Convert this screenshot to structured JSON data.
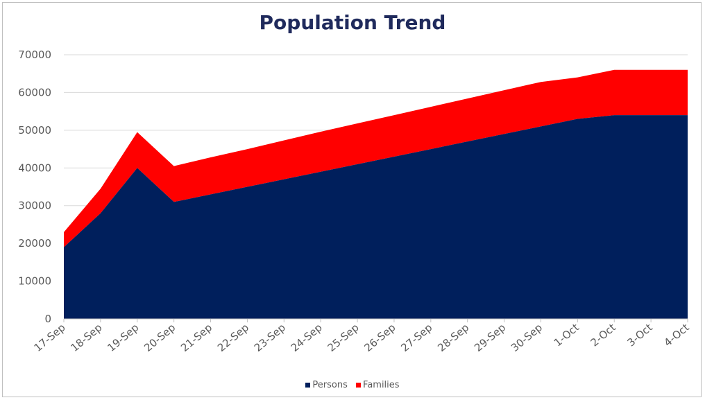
{
  "chart_data": {
    "type": "area",
    "stacked": true,
    "title": "Population Trend",
    "xlabel": "",
    "ylabel": "",
    "x": [
      "17-Sep",
      "18-Sep",
      "19-Sep",
      "20-Sep",
      "21-Sep",
      "22-Sep",
      "23-Sep",
      "24-Sep",
      "25-Sep",
      "26-Sep",
      "27-Sep",
      "28-Sep",
      "29-Sep",
      "30-Sep",
      "1-Oct",
      "2-Oct",
      "3-Oct",
      "4-Oct"
    ],
    "ylim": [
      0,
      70000
    ],
    "yticks": [
      "0",
      "10000",
      "20000",
      "30000",
      "40000",
      "50000",
      "60000",
      "70000"
    ],
    "grid": true,
    "legend_position": "bottom",
    "series": [
      {
        "name": "Persons",
        "color": "#001f5c",
        "values": [
          19000,
          28000,
          40000,
          31000,
          33000,
          35000,
          37000,
          39000,
          41000,
          43000,
          45000,
          47000,
          49000,
          51000,
          53000,
          54000,
          54000,
          54000
        ]
      },
      {
        "name": "Families",
        "color": "#ff0000",
        "values": [
          4000,
          6500,
          9500,
          9500,
          9800,
          10000,
          10300,
          10600,
          10800,
          11000,
          11200,
          11400,
          11600,
          11800,
          11000,
          12000,
          12000,
          12000
        ]
      }
    ]
  }
}
